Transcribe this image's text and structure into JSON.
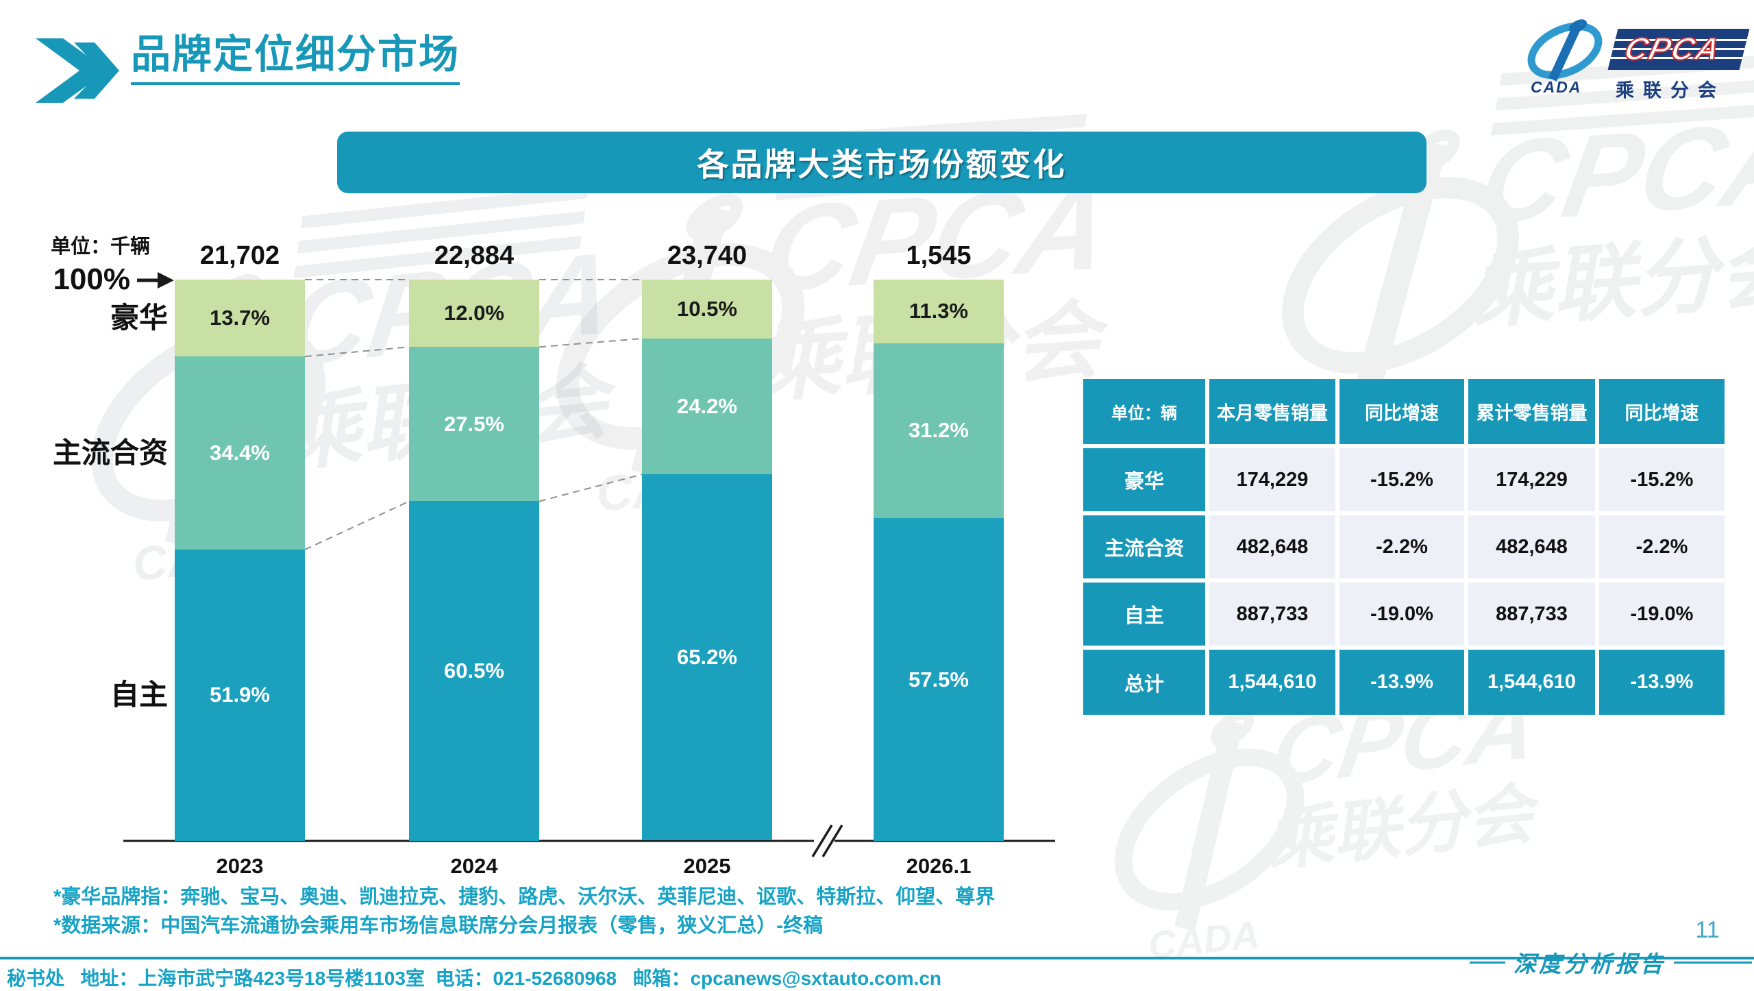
{
  "colors": {
    "accent": "#1798B8",
    "cyan_text": "#17A3C5",
    "cell_bg": "#EDF1F7",
    "logo_navy": "#1B3F7F",
    "logo_blue": "#2E9AD0",
    "logo_red": "#D22B2B",
    "bar_luxury": "#C9E0A5",
    "bar_mainstream": "#6FC5AF",
    "bar_domestic": "#1BA0BE"
  },
  "header": {
    "title": "品牌定位细分市场"
  },
  "logo": {
    "acronym": "CPCA",
    "cada": "CADA",
    "subtitle": "乘联分会"
  },
  "banner": {
    "title": "各品牌大类市场份额变化"
  },
  "chart": {
    "unit_label": "单位：千辆",
    "hundred_percent_label": "100%"
  },
  "chart_data": {
    "type": "bar",
    "stacked": true,
    "unit": "千辆",
    "title": "各品牌大类市场份额变化",
    "categories": [
      "2023",
      "2024",
      "2025",
      "2026.1"
    ],
    "totals": [
      21702,
      22884,
      23740,
      1545
    ],
    "totals_display": [
      "21,702",
      "22,884",
      "23,740",
      "1,545"
    ],
    "series": [
      {
        "name": "豪华",
        "values": [
          13.7,
          12.0,
          10.5,
          11.3
        ],
        "color": "#C9E0A5",
        "label_color": "#1a1a1a"
      },
      {
        "name": "主流合资",
        "values": [
          34.4,
          27.5,
          24.2,
          31.2
        ],
        "color": "#6FC5AF",
        "label_color": "#ffffff"
      },
      {
        "name": "自主",
        "values": [
          51.9,
          60.5,
          65.2,
          57.5
        ],
        "color": "#1BA0BE",
        "label_color": "#ffffff"
      }
    ],
    "value_suffix": "%",
    "ylim": [
      0,
      100
    ],
    "grid": false,
    "legend_position": "left-category-labels",
    "axis_break_between": [
      "2025",
      "2026.1"
    ]
  },
  "table": {
    "unit_header": "单位：辆",
    "columns": [
      "本月零售销量",
      "同比增速",
      "累计零售销量",
      "同比增速"
    ],
    "rows": [
      {
        "label": "豪华",
        "values": [
          "174,229",
          "-15.2%",
          "174,229",
          "-15.2%"
        ],
        "is_total": false
      },
      {
        "label": "主流合资",
        "values": [
          "482,648",
          "-2.2%",
          "482,648",
          "-2.2%"
        ],
        "is_total": false
      },
      {
        "label": "自主",
        "values": [
          "887,733",
          "-19.0%",
          "887,733",
          "-19.0%"
        ],
        "is_total": false
      },
      {
        "label": "总计",
        "values": [
          "1,544,610",
          "-13.9%",
          "1,544,610",
          "-13.9%"
        ],
        "is_total": true
      }
    ]
  },
  "footnotes": [
    "*豪华品牌指：奔驰、宝马、奥迪、凯迪拉克、捷豹、路虎、沃尔沃、英菲尼迪、讴歌、特斯拉、仰望、尊界",
    "*数据来源：中国汽车流通协会乘用车市场信息联席分会月报表（零售，狭义汇总）-终稿"
  ],
  "footer": {
    "text": "秘书处   地址：上海市武宁路423号18号楼1103室  电话：021-52680968   邮箱：cpcanews@sxtauto.com.cn"
  },
  "page": {
    "number": "11",
    "report_tag": "深度分析报告"
  }
}
